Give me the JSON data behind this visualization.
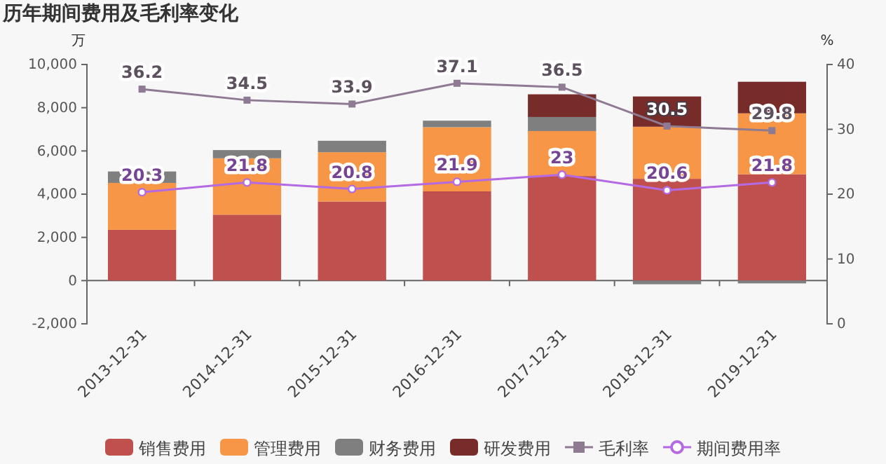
{
  "chart_data": {
    "type": "bar",
    "title": "历年期间费用及毛利率变化",
    "ylabel": "万",
    "y2label": "%",
    "stacked": true,
    "categories": [
      "2013-12-31",
      "2014-12-31",
      "2015-12-31",
      "2016-12-31",
      "2017-12-31",
      "2018-12-31",
      "2019-12-31"
    ],
    "series": [
      {
        "name": "销售费用",
        "color": "#c0504d",
        "values": [
          2350,
          3050,
          3660,
          4130,
          4840,
          4710,
          4920
        ]
      },
      {
        "name": "管理费用",
        "color": "#f79646",
        "values": [
          2170,
          2610,
          2280,
          2970,
          2080,
          2410,
          2820
        ]
      },
      {
        "name": "财务费用",
        "color": "#7f7f7f",
        "values": [
          530,
          380,
          530,
          300,
          650,
          -170,
          -130
        ]
      },
      {
        "name": "研发费用",
        "color": "#772c2a",
        "values": [
          null,
          null,
          null,
          null,
          1050,
          1400,
          1460
        ]
      },
      {
        "name": "毛利率",
        "type": "line",
        "axis": "y2",
        "color": "#8e7a92",
        "marker": "square",
        "data_labels": true,
        "values": [
          36.2,
          34.5,
          33.9,
          37.1,
          36.5,
          30.5,
          29.8
        ]
      },
      {
        "name": "期间费用率",
        "type": "line",
        "axis": "y2",
        "color": "#b36ae2",
        "marker": "circle",
        "data_labels": true,
        "values": [
          20.3,
          21.8,
          20.8,
          21.9,
          23,
          20.6,
          21.8
        ]
      }
    ],
    "ylim": [
      -2000,
      10000
    ],
    "yticks": [
      {
        "value": -2000,
        "label": "-2,000"
      },
      0,
      {
        "value": 2000,
        "label": "2,000"
      },
      {
        "value": 4000,
        "label": "4,000"
      },
      {
        "value": 6000,
        "label": "6,000"
      },
      {
        "value": 8000,
        "label": "8,000"
      },
      {
        "value": 10000,
        "label": "10,000"
      }
    ],
    "y2lim": [
      0,
      40
    ],
    "y2ticks": [
      0,
      10,
      20,
      30,
      40
    ],
    "legend": "bottom"
  }
}
